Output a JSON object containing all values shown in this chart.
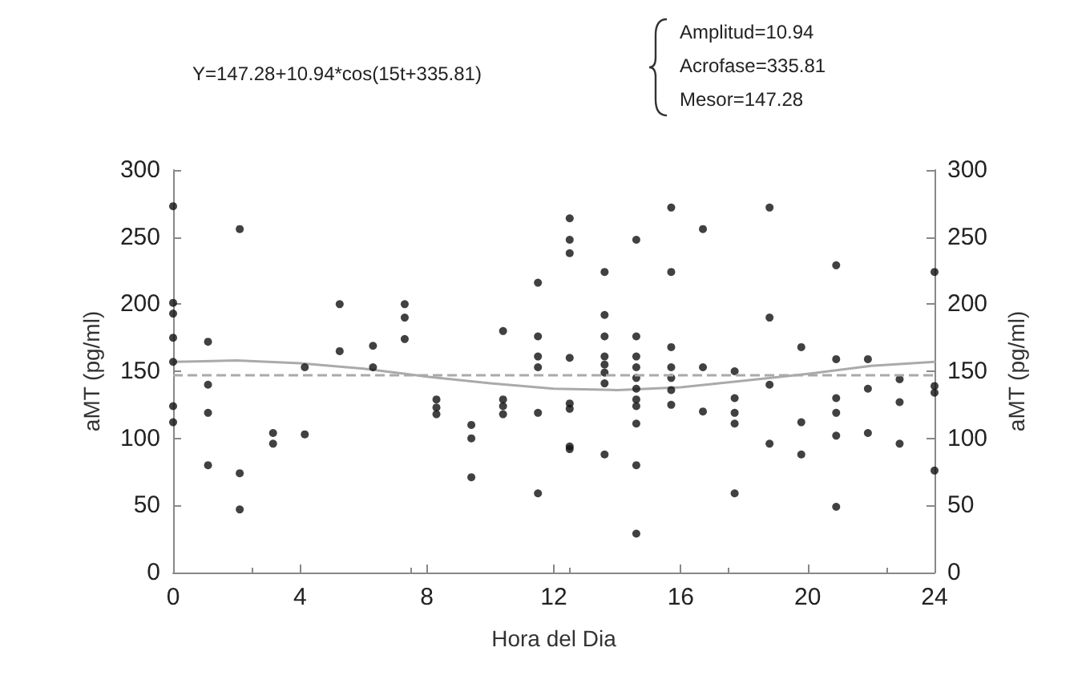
{
  "chart_data": {
    "type": "scatter",
    "xlabel": "Hora del Dia",
    "ylabel": "aMT (pg/ml)",
    "y2label": "aMT (pg/ml)",
    "annotations": [
      "Y=147.28+10.94*cos(15t+335.81)",
      "Amplitud=10.94",
      "Acrofase=335.81",
      "Mesor=147.28"
    ],
    "xlim": [
      0,
      24
    ],
    "xticks": [
      0,
      4,
      8,
      12,
      16,
      20,
      24
    ],
    "ylim": [
      0,
      300
    ],
    "yticks": [
      0,
      50,
      100,
      150,
      200,
      250,
      300
    ],
    "y2lim": [
      0,
      300
    ],
    "y2ticks": [
      0,
      50,
      100,
      150,
      200,
      250,
      300
    ],
    "grid": false,
    "ref_lines": [
      {
        "axis": "y",
        "value": 147.28,
        "color": "#aaaaaa",
        "line_style": "dashed"
      }
    ],
    "series": [
      {
        "color": "#111111",
        "marker": "circle",
        "x": [
          0,
          0,
          0,
          0,
          0,
          0,
          0,
          1.1,
          1.1,
          1.1,
          1.1,
          2.1,
          2.1,
          2.1,
          3.15,
          3.15,
          4.15,
          4.15,
          5.25,
          5.25,
          6.3,
          6.3,
          7.3,
          7.3,
          7.3,
          8.3,
          8.3,
          8.3,
          9.4,
          9.4,
          9.4,
          10.4,
          10.4,
          10.4,
          10.4,
          11.5,
          11.5,
          11.5,
          11.5,
          11.5,
          11.5,
          12.5,
          12.5,
          12.5,
          12.5,
          12.5,
          12.5,
          12.5,
          12.5,
          13.6,
          13.6,
          13.6,
          13.6,
          13.6,
          13.6,
          13.6,
          13.6,
          14.6,
          14.6,
          14.6,
          14.6,
          14.6,
          14.6,
          14.6,
          14.6,
          14.6,
          14.6,
          14.6,
          15.7,
          15.7,
          15.7,
          15.7,
          15.7,
          15.7,
          15.7,
          16.7,
          16.7,
          16.7,
          17.7,
          17.7,
          17.7,
          17.7,
          17.7,
          18.8,
          18.8,
          18.8,
          18.8,
          19.8,
          19.8,
          19.8,
          20.9,
          20.9,
          20.9,
          20.9,
          20.9,
          20.9,
          21.9,
          21.9,
          21.9,
          22.9,
          22.9,
          22.9,
          24,
          24,
          24,
          24
        ],
        "values": [
          273,
          201,
          193,
          175,
          157,
          124,
          112,
          172,
          140,
          119,
          80,
          256,
          74,
          47,
          104,
          96,
          153,
          103,
          200,
          165,
          169,
          153,
          200,
          190,
          174,
          129,
          123,
          118,
          110,
          100,
          71,
          180,
          129,
          124,
          118,
          216,
          176,
          161,
          153,
          119,
          59,
          264,
          248,
          238,
          160,
          126,
          122,
          94,
          92,
          224,
          192,
          176,
          161,
          155,
          149,
          141,
          88,
          248,
          176,
          161,
          153,
          145,
          137,
          129,
          124,
          111,
          80,
          29,
          272,
          224,
          168,
          153,
          145,
          136,
          125,
          256,
          153,
          120,
          150,
          130,
          119,
          111,
          59,
          272,
          190,
          140,
          96,
          168,
          112,
          88,
          229,
          159,
          130,
          119,
          102,
          49,
          159,
          137,
          104,
          144,
          127,
          96,
          224,
          139,
          134,
          76
        ]
      },
      {
        "type": "line",
        "color": "#aaaaaa",
        "marker": "none",
        "line_style": "solid",
        "x": [
          0,
          2,
          4,
          6,
          8,
          10,
          12,
          14,
          16,
          18,
          20,
          22,
          24
        ],
        "values": [
          157,
          158,
          156,
          152,
          146,
          141,
          137,
          136,
          138,
          143,
          148,
          154,
          157
        ]
      }
    ]
  }
}
